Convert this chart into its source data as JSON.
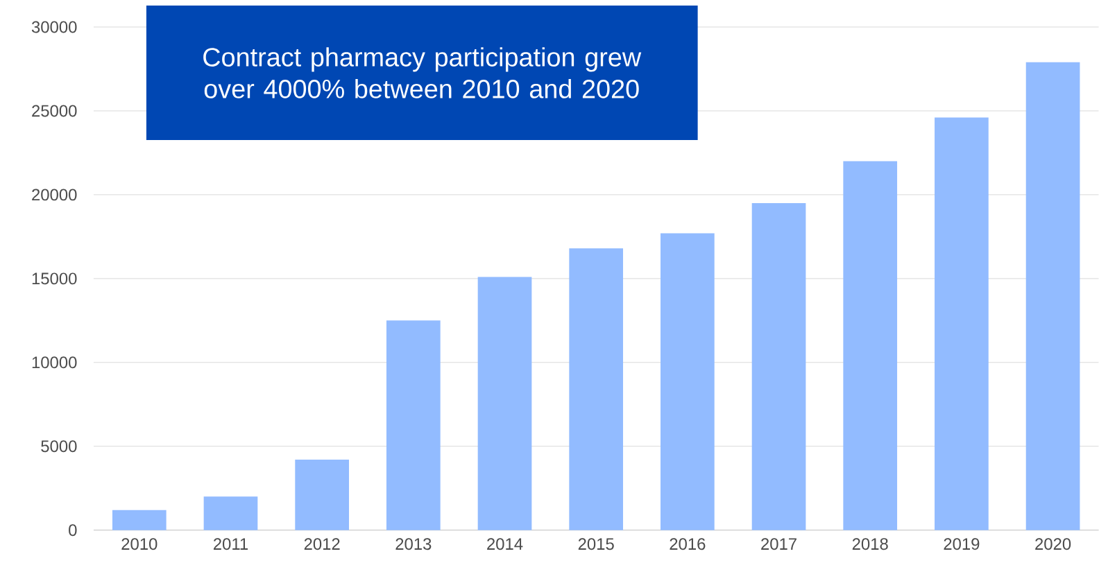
{
  "chart_data": {
    "type": "bar",
    "categories": [
      "2010",
      "2011",
      "2012",
      "2013",
      "2014",
      "2015",
      "2016",
      "2017",
      "2018",
      "2019",
      "2020"
    ],
    "values": [
      1200,
      2000,
      4200,
      12500,
      15100,
      16800,
      17700,
      19500,
      22000,
      24600,
      27900
    ],
    "color": "#92bbff",
    "ylim": [
      0,
      30000
    ],
    "yticks": [
      0,
      5000,
      10000,
      15000,
      20000,
      25000,
      30000
    ],
    "grid": "y",
    "annotations": [
      "Contract pharmacy participation grew over 4000% between 2010 and 2020"
    ]
  }
}
